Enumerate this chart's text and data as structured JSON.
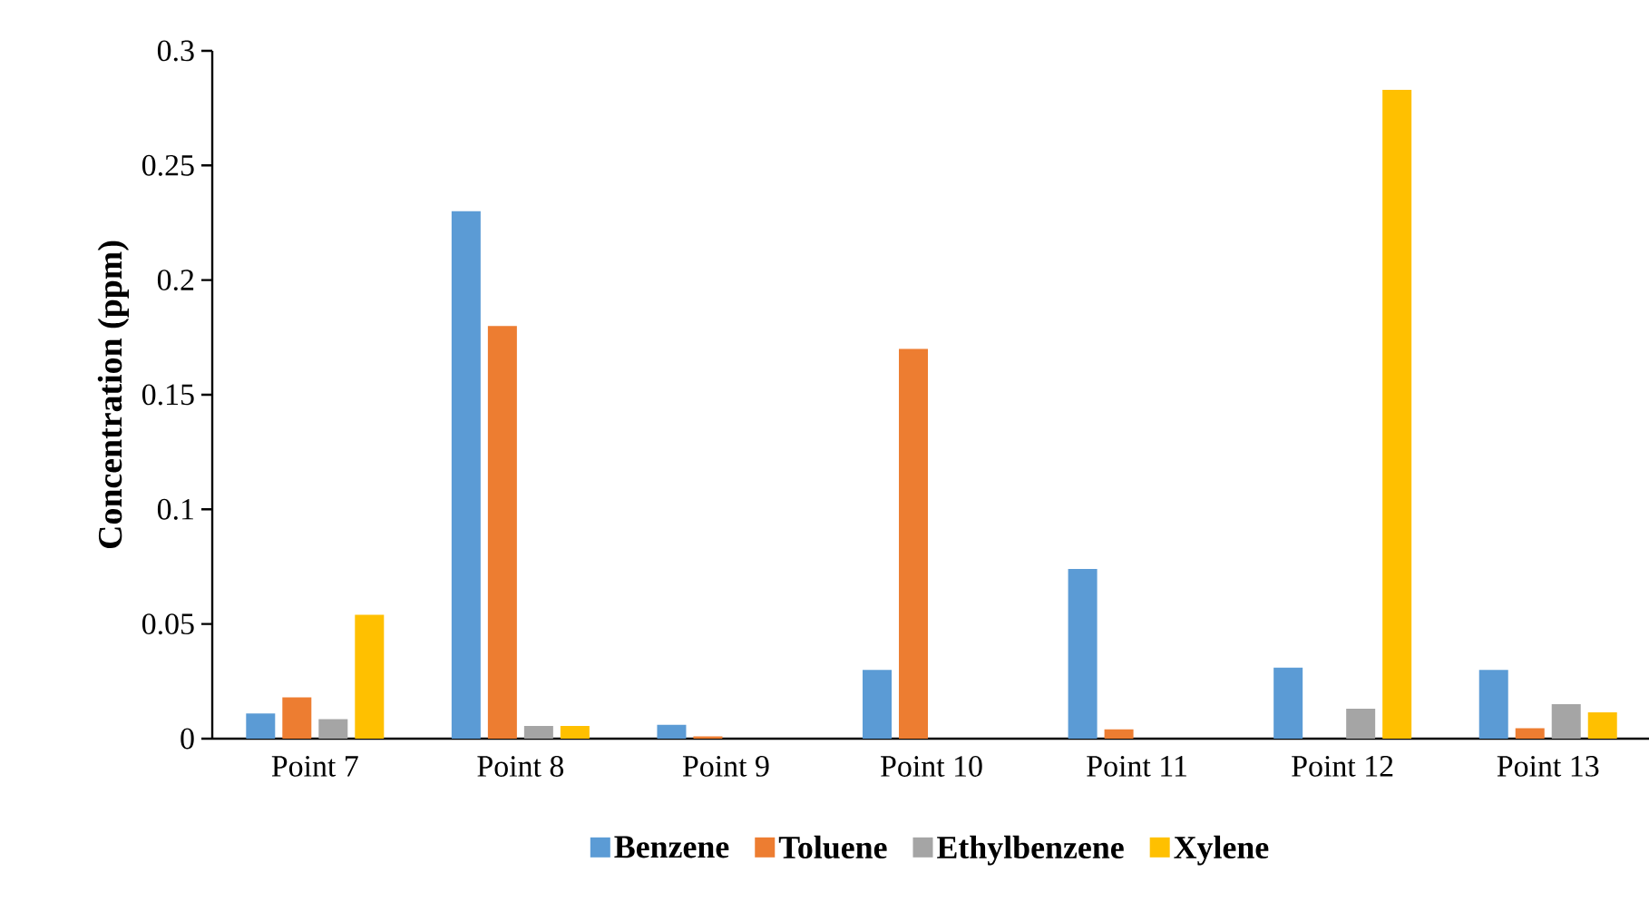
{
  "chart_data": {
    "type": "bar",
    "ylabel": "Concentration (ppm)",
    "categories": [
      "Point 7",
      "Point 8",
      "Point 9",
      "Point 10",
      "Point 11",
      "Point 12",
      "Point 13"
    ],
    "series": [
      {
        "name": "Benzene",
        "color": "#5b9bd5",
        "values": [
          0.011,
          0.23,
          0.006,
          0.03,
          0.074,
          0.031,
          0.03
        ]
      },
      {
        "name": "Toluene",
        "color": "#ed7d31",
        "values": [
          0.018,
          0.18,
          0.001,
          0.17,
          0.004,
          null,
          0.0045
        ]
      },
      {
        "name": "Ethylbenzene",
        "color": "#a5a5a5",
        "values": [
          0.0085,
          0.0055,
          null,
          null,
          null,
          0.013,
          0.015
        ]
      },
      {
        "name": "Xylene",
        "color": "#ffc000",
        "values": [
          0.054,
          0.0055,
          null,
          null,
          null,
          0.283,
          0.0115
        ]
      }
    ],
    "ylim": [
      0,
      0.3
    ],
    "yticks": [
      0,
      0.05,
      0.1,
      0.15,
      0.2,
      0.25,
      0.3
    ],
    "grid": false,
    "legend": "bottom"
  }
}
